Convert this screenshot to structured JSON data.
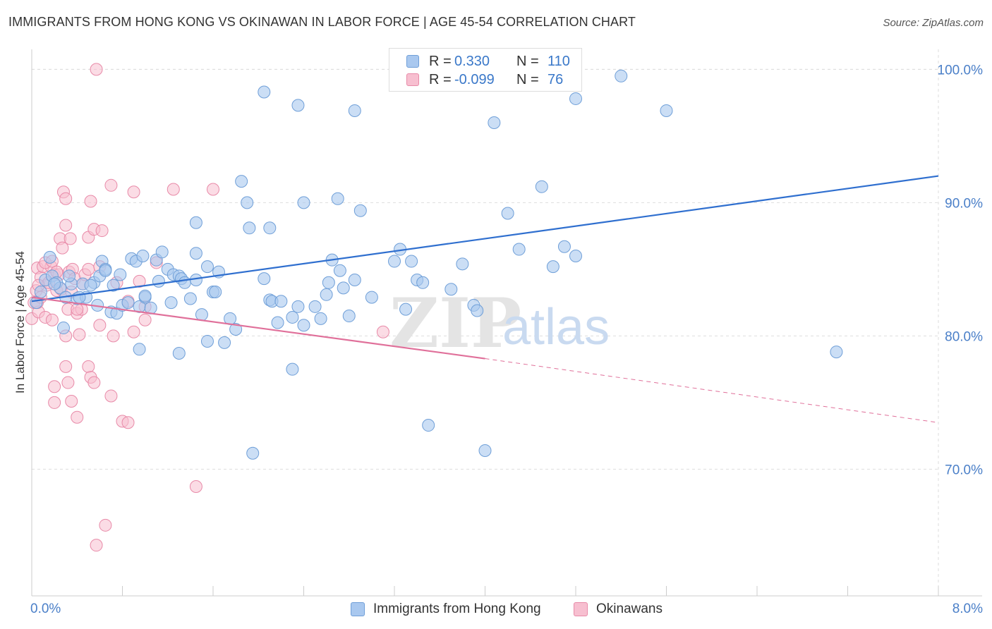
{
  "title": "IMMIGRANTS FROM HONG KONG VS OKINAWAN IN LABOR FORCE | AGE 45-54 CORRELATION CHART",
  "source": "Source: ZipAtlas.com",
  "legend": {
    "rows": [
      {
        "r_label": "R =",
        "r_value": "0.330",
        "n_label": "N =",
        "n_value": "110"
      },
      {
        "r_label": "R =",
        "r_value": "-0.099",
        "n_label": "N =",
        "n_value": "76"
      }
    ]
  },
  "bottom_legend": {
    "series1": "Immigrants from Hong Kong",
    "series2": "Okinawans"
  },
  "watermark": {
    "zip": "ZIP",
    "atlas": "atlas"
  },
  "colors": {
    "blue_fill": "#a9c8ef",
    "blue_stroke": "#6f9fd8",
    "blue_line": "#2f6fcf",
    "pink_fill": "#f7bfd0",
    "pink_stroke": "#e88aa8",
    "pink_line": "#e0709a",
    "tick_label": "#4a7fc8",
    "grid": "#dddddd"
  },
  "chart_data": {
    "type": "scatter",
    "title": "IMMIGRANTS FROM HONG KONG VS OKINAWAN IN LABOR FORCE | AGE 45-54 CORRELATION CHART",
    "xlabel": "",
    "ylabel": "In Labor Force | Age 45-54",
    "xlim": [
      0.0,
      8.0
    ],
    "ylim": [
      60.5,
      101.5
    ],
    "x_tick_labels": [
      "0.0%",
      "8.0%"
    ],
    "y_ticks": [
      70,
      80,
      90,
      100
    ],
    "y_tick_labels": [
      "70.0%",
      "80.0%",
      "90.0%",
      "100.0%"
    ],
    "grid": true,
    "legend_position": "top-center",
    "series": [
      {
        "name": "Immigrants from Hong Kong",
        "r": 0.33,
        "n": 110,
        "trend": {
          "x0": 0.0,
          "y0": 82.6,
          "x1": 8.0,
          "y1": 92.0
        },
        "points": [
          [
            0.04,
            82.5
          ],
          [
            0.08,
            83.3
          ],
          [
            0.12,
            84.2
          ],
          [
            0.16,
            85.9
          ],
          [
            0.18,
            84.5
          ],
          [
            0.22,
            84.0
          ],
          [
            0.25,
            83.6
          ],
          [
            0.28,
            80.6
          ],
          [
            0.3,
            82.9
          ],
          [
            0.35,
            83.9
          ],
          [
            0.4,
            82.8
          ],
          [
            0.45,
            83.9
          ],
          [
            0.48,
            82.9
          ],
          [
            0.55,
            84.0
          ],
          [
            0.6,
            84.5
          ],
          [
            0.62,
            85.6
          ],
          [
            0.65,
            85.0
          ],
          [
            0.7,
            81.8
          ],
          [
            0.72,
            83.8
          ],
          [
            0.75,
            81.7
          ],
          [
            0.8,
            82.3
          ],
          [
            0.85,
            82.5
          ],
          [
            0.88,
            85.8
          ],
          [
            0.92,
            85.6
          ],
          [
            0.95,
            82.2
          ],
          [
            0.98,
            86.0
          ],
          [
            1.0,
            82.9
          ],
          [
            1.05,
            82.1
          ],
          [
            1.1,
            85.7
          ],
          [
            1.12,
            84.1
          ],
          [
            1.15,
            86.3
          ],
          [
            1.2,
            85.0
          ],
          [
            1.25,
            84.6
          ],
          [
            1.3,
            84.5
          ],
          [
            1.32,
            84.3
          ],
          [
            1.35,
            84.0
          ],
          [
            1.4,
            82.8
          ],
          [
            1.45,
            84.2
          ],
          [
            1.5,
            81.6
          ],
          [
            1.55,
            85.2
          ],
          [
            1.6,
            83.3
          ],
          [
            1.65,
            84.8
          ],
          [
            1.62,
            83.3
          ],
          [
            1.7,
            79.5
          ],
          [
            1.75,
            81.3
          ],
          [
            1.8,
            80.5
          ],
          [
            1.85,
            91.6
          ],
          [
            1.9,
            90.0
          ],
          [
            1.92,
            88.1
          ],
          [
            2.05,
            84.3
          ],
          [
            2.1,
            82.7
          ],
          [
            2.12,
            82.6
          ],
          [
            2.17,
            81.0
          ],
          [
            2.2,
            82.6
          ],
          [
            2.3,
            81.4
          ],
          [
            2.35,
            82.2
          ],
          [
            2.4,
            80.8
          ],
          [
            2.5,
            82.2
          ],
          [
            2.55,
            81.3
          ],
          [
            2.6,
            83.1
          ],
          [
            2.65,
            85.7
          ],
          [
            2.72,
            84.9
          ],
          [
            2.75,
            83.6
          ],
          [
            2.8,
            81.5
          ],
          [
            2.85,
            84.2
          ],
          [
            2.9,
            89.4
          ],
          [
            3.0,
            82.9
          ],
          [
            3.2,
            85.6
          ],
          [
            3.25,
            86.5
          ],
          [
            3.3,
            82.0
          ],
          [
            3.35,
            85.6
          ],
          [
            3.4,
            84.2
          ],
          [
            3.8,
            85.4
          ],
          [
            3.9,
            82.3
          ],
          [
            3.93,
            81.9
          ],
          [
            4.2,
            89.2
          ],
          [
            4.3,
            86.5
          ],
          [
            4.5,
            91.2
          ],
          [
            4.6,
            85.2
          ],
          [
            4.7,
            86.7
          ],
          [
            5.6,
            96.9
          ],
          [
            7.1,
            78.8
          ],
          [
            2.7,
            90.3
          ],
          [
            2.4,
            90.0
          ],
          [
            2.1,
            88.1
          ],
          [
            1.45,
            88.5
          ],
          [
            0.2,
            83.9
          ],
          [
            0.33,
            84.5
          ],
          [
            0.52,
            83.8
          ],
          [
            1.55,
            79.6
          ],
          [
            2.3,
            77.5
          ],
          [
            3.5,
            73.3
          ],
          [
            4.0,
            71.4
          ],
          [
            1.95,
            71.2
          ],
          [
            1.3,
            78.7
          ],
          [
            0.95,
            79.0
          ],
          [
            2.35,
            97.3
          ],
          [
            2.85,
            96.9
          ],
          [
            4.08,
            96.0
          ],
          [
            4.8,
            97.8
          ],
          [
            2.05,
            98.3
          ],
          [
            3.6,
            99.8
          ],
          [
            5.2,
            99.5
          ],
          [
            0.65,
            84.9
          ],
          [
            0.78,
            84.6
          ],
          [
            1.0,
            83.0
          ],
          [
            1.45,
            86.2
          ],
          [
            1.23,
            82.5
          ],
          [
            0.42,
            82.9
          ],
          [
            0.58,
            82.3
          ],
          [
            3.7,
            83.5
          ],
          [
            4.8,
            86.0
          ],
          [
            3.45,
            84.0
          ],
          [
            2.62,
            84.0
          ]
        ]
      },
      {
        "name": "Okinawans",
        "r": -0.099,
        "n": 76,
        "trend": {
          "x0": 0.0,
          "y0": 82.9,
          "x1": 4.0,
          "y1": 78.3,
          "dash_x1": 8.0,
          "dash_y1": 73.5
        },
        "points": [
          [
            0.0,
            81.3
          ],
          [
            0.02,
            82.5
          ],
          [
            0.04,
            83.4
          ],
          [
            0.05,
            85.1
          ],
          [
            0.06,
            81.8
          ],
          [
            0.08,
            84.4
          ],
          [
            0.1,
            85.2
          ],
          [
            0.12,
            81.4
          ],
          [
            0.13,
            83.8
          ],
          [
            0.15,
            84.0
          ],
          [
            0.17,
            85.2
          ],
          [
            0.18,
            81.2
          ],
          [
            0.2,
            84.6
          ],
          [
            0.22,
            83.4
          ],
          [
            0.24,
            84.6
          ],
          [
            0.25,
            87.3
          ],
          [
            0.27,
            86.6
          ],
          [
            0.28,
            90.8
          ],
          [
            0.3,
            88.3
          ],
          [
            0.32,
            82.0
          ],
          [
            0.33,
            84.8
          ],
          [
            0.34,
            87.3
          ],
          [
            0.36,
            85.0
          ],
          [
            0.38,
            84.3
          ],
          [
            0.4,
            81.7
          ],
          [
            0.42,
            80.1
          ],
          [
            0.44,
            82.0
          ],
          [
            0.45,
            83.9
          ],
          [
            0.47,
            84.6
          ],
          [
            0.5,
            77.7
          ],
          [
            0.52,
            76.9
          ],
          [
            0.55,
            76.5
          ],
          [
            0.2,
            76.2
          ],
          [
            0.2,
            75.0
          ],
          [
            0.3,
            77.7
          ],
          [
            0.32,
            76.5
          ],
          [
            0.35,
            75.1
          ],
          [
            0.4,
            73.9
          ],
          [
            0.5,
            85.0
          ],
          [
            0.5,
            87.4
          ],
          [
            0.52,
            90.1
          ],
          [
            0.55,
            88.0
          ],
          [
            0.6,
            85.2
          ],
          [
            0.62,
            87.9
          ],
          [
            0.7,
            75.5
          ],
          [
            0.72,
            80.0
          ],
          [
            0.8,
            73.6
          ],
          [
            0.85,
            73.5
          ],
          [
            0.9,
            80.3
          ],
          [
            1.0,
            81.2
          ],
          [
            1.1,
            85.5
          ],
          [
            0.75,
            84.0
          ],
          [
            0.7,
            91.3
          ],
          [
            0.9,
            90.8
          ],
          [
            1.25,
            91.0
          ],
          [
            1.6,
            91.0
          ],
          [
            0.57,
            100.0
          ],
          [
            0.65,
            65.8
          ],
          [
            0.57,
            64.3
          ],
          [
            1.45,
            68.7
          ],
          [
            0.05,
            82.5
          ],
          [
            0.08,
            82.9
          ],
          [
            0.12,
            85.5
          ],
          [
            0.18,
            85.6
          ],
          [
            0.22,
            84.8
          ],
          [
            0.26,
            83.5
          ],
          [
            0.3,
            80.0
          ],
          [
            0.35,
            83.3
          ],
          [
            0.4,
            82.0
          ],
          [
            0.06,
            83.8
          ],
          [
            0.3,
            90.3
          ],
          [
            0.6,
            80.8
          ],
          [
            3.1,
            80.3
          ],
          [
            1.0,
            82.2
          ],
          [
            0.85,
            82.6
          ],
          [
            0.95,
            84.1
          ]
        ]
      }
    ]
  }
}
